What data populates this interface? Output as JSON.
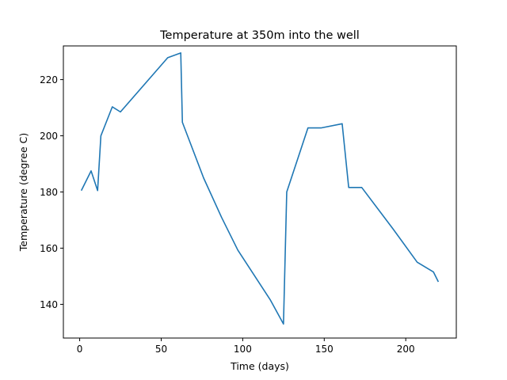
{
  "chart_data": {
    "type": "line",
    "title": "Temperature at 350m into the well",
    "xlabel": "Time (days)",
    "ylabel": "Temperature (degree C)",
    "xlim": [
      -10,
      231
    ],
    "ylim": [
      128,
      232
    ],
    "xticks": [
      0,
      50,
      100,
      150,
      200
    ],
    "yticks": [
      140,
      160,
      180,
      200,
      220
    ],
    "grid": false,
    "series": [
      {
        "color": "#1f77b4",
        "x": [
          1,
          7,
          11,
          13,
          20,
          25,
          54,
          62,
          63,
          76,
          87,
          97,
          117,
          125,
          127,
          140,
          148,
          161,
          165,
          173,
          192,
          207,
          217,
          220
        ],
        "y": [
          180.5,
          187.5,
          180.5,
          200,
          210.3,
          208.5,
          227.8,
          229.5,
          204.8,
          185,
          171,
          159.3,
          141.5,
          133,
          180,
          202.8,
          202.8,
          204.3,
          181.6,
          181.6,
          167,
          155,
          151.5,
          148
        ]
      }
    ]
  }
}
